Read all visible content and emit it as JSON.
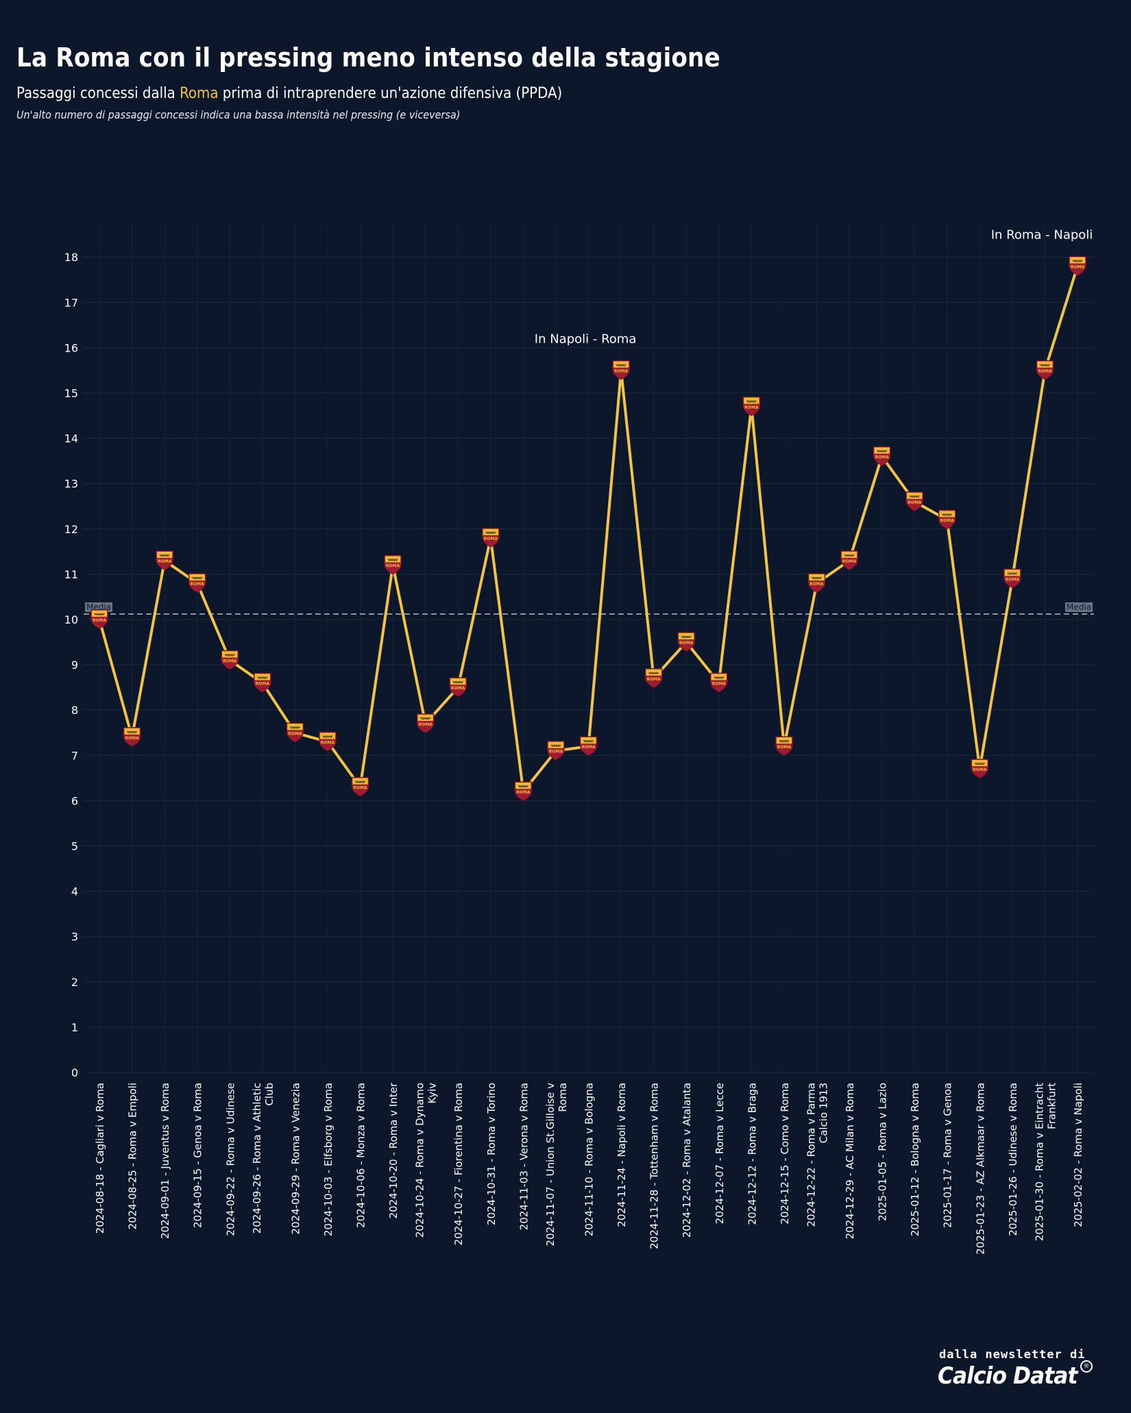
{
  "header": {
    "title": "La Roma con il pressing meno intenso della stagione",
    "subtitle_pre": "Passaggi concessi dalla ",
    "subtitle_team": "Roma",
    "subtitle_post": " prima di intraprendere un'azione difensiva (PPDA)",
    "note": "Un'alto numero di passaggi concessi indica una bassa intensità nel pressing (e viceversa)"
  },
  "footer": {
    "line1": "dalla newsletter di",
    "brand": "Calcio Datat",
    "mark": "®"
  },
  "colors": {
    "background": "#0c172b",
    "line": "#f2c53d",
    "badge_red": "#9e1b32",
    "badge_gold": "#f2b731",
    "mean_line": "#b8c0cc"
  },
  "chart_data": {
    "type": "line",
    "ylim": [
      0,
      18.9
    ],
    "yticks": [
      0,
      1,
      2,
      3,
      4,
      5,
      6,
      7,
      8,
      9,
      10,
      11,
      12,
      13,
      14,
      15,
      16,
      17,
      18
    ],
    "grid": true,
    "marker_icon": "as-roma-badge-icon",
    "mean": {
      "value": 10.12,
      "label": "Media"
    },
    "categories": [
      "2024-08-18 - Cagliari v Roma",
      "2024-08-25 - Roma v Empoli",
      "2024-09-01 - Juventus v Roma",
      "2024-09-15 - Genoa v Roma",
      "2024-09-22 - Roma v Udinese",
      "2024-09-26 - Roma v Athletic Club",
      "2024-09-29 - Roma v Venezia",
      "2024-10-03 - Elfsborg v Roma",
      "2024-10-06 - Monza v Roma",
      "2024-10-20 - Roma v Inter",
      "2024-10-24 - Roma v Dynamo Kyiv",
      "2024-10-27 - Fiorentina v Roma",
      "2024-10-31 - Roma v Torino",
      "2024-11-03 - Verona v Roma",
      "2024-11-07 - Union St.Gilloise v Roma",
      "2024-11-10 - Roma v Bologna",
      "2024-11-24 - Napoli v Roma",
      "2024-11-28 - Tottenham v Roma",
      "2024-12-02 - Roma v Atalanta",
      "2024-12-07 - Roma v Lecce",
      "2024-12-12 - Roma v Braga",
      "2024-12-15 - Como v Roma",
      "2024-12-22 - Roma v Parma Calcio 1913",
      "2024-12-29 - AC Milan v Roma",
      "2025-01-05 - Roma v Lazio",
      "2025-01-12 - Bologna v Roma",
      "2025-01-17 - Roma v Genoa",
      "2025-01-23 - AZ Alkmaar v Roma",
      "2025-01-26 - Udinese v Roma",
      "2025-01-30 - Roma v Eintracht Frankfurt",
      "2025-02-02 - Roma v Napoli"
    ],
    "category_lines": [
      [
        "2024-08-18 - Cagliari v Roma"
      ],
      [
        "2024-08-25 - Roma v Empoli"
      ],
      [
        "2024-09-01 - Juventus v Roma"
      ],
      [
        "2024-09-15 - Genoa v Roma"
      ],
      [
        "2024-09-22 - Roma v Udinese"
      ],
      [
        "2024-09-26 - Roma v Athletic",
        "Club"
      ],
      [
        "2024-09-29 - Roma v Venezia"
      ],
      [
        "2024-10-03 - Elfsborg v Roma"
      ],
      [
        "2024-10-06 - Monza v Roma"
      ],
      [
        "2024-10-20 - Roma v Inter"
      ],
      [
        "2024-10-24 - Roma v Dynamo",
        "Kyiv"
      ],
      [
        "2024-10-27 - Fiorentina v Roma"
      ],
      [
        "2024-10-31 - Roma v Torino"
      ],
      [
        "2024-11-03 - Verona v Roma"
      ],
      [
        "2024-11-07 - Union St.Gilloise v",
        "Roma"
      ],
      [
        "2024-11-10 - Roma v Bologna"
      ],
      [
        "2024-11-24 - Napoli v Roma"
      ],
      [
        "2024-11-28 - Tottenham v Roma"
      ],
      [
        "2024-12-02 - Roma v Atalanta"
      ],
      [
        "2024-12-07 - Roma v Lecce"
      ],
      [
        "2024-12-12 - Roma v Braga"
      ],
      [
        "2024-12-15 - Como v Roma"
      ],
      [
        "2024-12-22 - Roma v Parma",
        "Calcio 1913"
      ],
      [
        "2024-12-29 - AC Milan v Roma"
      ],
      [
        "2025-01-05 - Roma v Lazio"
      ],
      [
        "2025-01-12 - Bologna v Roma"
      ],
      [
        "2025-01-17 - Roma v Genoa"
      ],
      [
        "2025-01-23 - AZ Alkmaar v Roma"
      ],
      [
        "2025-01-26 - Udinese v Roma"
      ],
      [
        "2025-01-30 - Roma v Eintracht",
        "Frankfurt"
      ],
      [
        "2025-02-02 - Roma v Napoli"
      ]
    ],
    "values": [
      10.0,
      7.4,
      11.3,
      10.8,
      9.1,
      8.6,
      7.5,
      7.3,
      6.3,
      11.2,
      7.7,
      8.5,
      11.8,
      6.2,
      7.1,
      7.2,
      15.5,
      8.7,
      9.5,
      8.6,
      14.7,
      7.2,
      10.8,
      11.3,
      13.6,
      12.6,
      12.2,
      6.7,
      10.9,
      15.5,
      17.8
    ],
    "annotations": [
      {
        "index": 16,
        "text": "In Napoli - Roma"
      },
      {
        "index": 30,
        "text": "In Roma - Napoli"
      }
    ]
  }
}
